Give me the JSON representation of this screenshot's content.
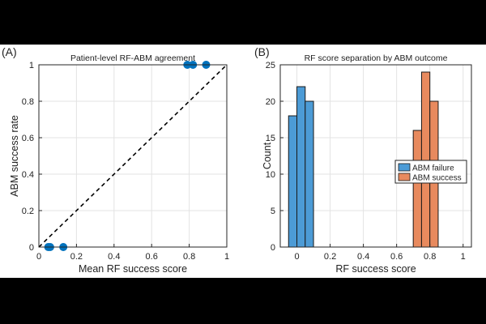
{
  "chart_data": [
    {
      "type": "scatter",
      "panel_label": "(A)",
      "title": "Patient-level RF-ABM agreement",
      "xlabel": "Mean RF success score",
      "ylabel": "ABM success rate",
      "xlim": [
        0,
        1
      ],
      "ylim": [
        0,
        1
      ],
      "xticks": [
        "0",
        "0.2",
        "0.4",
        "0.6",
        "0.8",
        "1"
      ],
      "yticks": [
        "0",
        "0.2",
        "0.4",
        "0.6",
        "0.8",
        "1"
      ],
      "grid": true,
      "points": [
        {
          "x": 0.05,
          "y": 0
        },
        {
          "x": 0.06,
          "y": 0
        },
        {
          "x": 0.13,
          "y": 0
        },
        {
          "x": 0.79,
          "y": 1
        },
        {
          "x": 0.82,
          "y": 1
        },
        {
          "x": 0.89,
          "y": 1
        }
      ],
      "reference_line": {
        "x": [
          0,
          1
        ],
        "y": [
          0,
          1
        ],
        "style": "dashed"
      },
      "colors": {
        "points": "#0072BD",
        "line": "#000000"
      }
    },
    {
      "type": "bar",
      "subtype": "histogram",
      "panel_label": "(B)",
      "title": "RF score separation by ABM outcome",
      "xlabel": "RF success score",
      "ylabel": "Count",
      "xlim": [
        -0.1,
        1.05
      ],
      "ylim": [
        0,
        25
      ],
      "xticks": [
        "0",
        "0.2",
        "0.4",
        "0.6",
        "0.8",
        "1"
      ],
      "yticks": [
        "0",
        "5",
        "10",
        "15",
        "20",
        "25"
      ],
      "grid": true,
      "legend_position": "center-right",
      "series": [
        {
          "name": "ABM failure",
          "color": "#4C9BD6",
          "bins": [
            [
              -0.05,
              0.0,
              18
            ],
            [
              0.0,
              0.05,
              22
            ],
            [
              0.05,
              0.1,
              20
            ]
          ]
        },
        {
          "name": "ABM success",
          "color": "#E88A5E",
          "bins": [
            [
              0.7,
              0.75,
              16
            ],
            [
              0.75,
              0.8,
              24
            ],
            [
              0.8,
              0.85,
              20
            ]
          ]
        }
      ]
    }
  ]
}
